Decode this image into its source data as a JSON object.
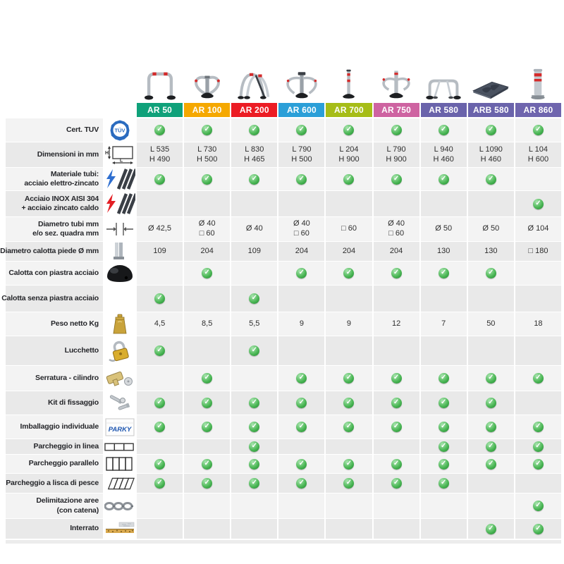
{
  "colors": {
    "check_green": "#3aa944",
    "row_light": "#f3f3f3",
    "row_dark": "#e9e9e9",
    "label_text": "#25262a"
  },
  "products": [
    {
      "id": "ar-50",
      "label": "AR 50",
      "color": "#0FA17A",
      "image": "arch-hoop-barrier"
    },
    {
      "id": "ar-100",
      "label": "AR 100",
      "color": "#F5A800",
      "image": "folding-loop-barrier"
    },
    {
      "id": "ar-200",
      "label": "AR 200",
      "color": "#EC1C24",
      "image": "double-arch-barrier"
    },
    {
      "id": "ar-600",
      "label": "AR 600",
      "color": "#2B9FD8",
      "image": "wing-barrier"
    },
    {
      "id": "ar-700",
      "label": "AR 700",
      "color": "#A6BD17",
      "image": "slim-bollard"
    },
    {
      "id": "ar-750",
      "label": "AR 750",
      "color": "#CE63A1",
      "image": "post-with-arms"
    },
    {
      "id": "ar-580",
      "label": "AR 580",
      "color": "#6A63AB",
      "image": "low-arch-barrier"
    },
    {
      "id": "arb-580",
      "label": "ARB 580",
      "color": "#6A63AB",
      "image": "ramp-plate"
    },
    {
      "id": "ar-860",
      "label": "AR 860",
      "color": "#6F65AE",
      "image": "heavy-bollard"
    }
  ],
  "rows": [
    {
      "id": "cert-tuv",
      "label_lines": [
        "Cert. TUV"
      ],
      "icon": "tuv-badge-icon",
      "cells": [
        {
          "check": true
        },
        {
          "check": true
        },
        {
          "check": true
        },
        {
          "check": true
        },
        {
          "check": true
        },
        {
          "check": true
        },
        {
          "check": true
        },
        {
          "check": true
        },
        {
          "check": true
        }
      ]
    },
    {
      "id": "dimensioni",
      "label_lines": [
        "Dimensioni in mm"
      ],
      "icon": "dimensions-icon",
      "cells": [
        {
          "lines": [
            "L 535",
            "H 490"
          ]
        },
        {
          "lines": [
            "L 730",
            "H 500"
          ]
        },
        {
          "lines": [
            "L 830",
            "H 465"
          ]
        },
        {
          "lines": [
            "L 790",
            "H 500"
          ]
        },
        {
          "lines": [
            "L 204",
            "H 900"
          ]
        },
        {
          "lines": [
            "L 790",
            "H 900"
          ]
        },
        {
          "lines": [
            "L 940",
            "H 460"
          ]
        },
        {
          "lines": [
            "L 1090",
            "H 460"
          ]
        },
        {
          "lines": [
            "L 104",
            "H 600"
          ]
        }
      ]
    },
    {
      "id": "materiale-elettrozincato",
      "label_lines": [
        "Materiale tubi:",
        "acciaio elettro-zincato"
      ],
      "icon": "electro-zinc-steel-icon",
      "cells": [
        {
          "check": true
        },
        {
          "check": true
        },
        {
          "check": true
        },
        {
          "check": true
        },
        {
          "check": true
        },
        {
          "check": true
        },
        {
          "check": true
        },
        {
          "check": true
        },
        null
      ]
    },
    {
      "id": "acciaio-inox",
      "label_lines": [
        "Acciaio INOX AISI 304",
        "+ acciaio zincato caldo"
      ],
      "icon": "inox-steel-icon",
      "cells": [
        null,
        null,
        null,
        null,
        null,
        null,
        null,
        null,
        {
          "check": true
        }
      ]
    },
    {
      "id": "diametro-tubi",
      "label_lines": [
        "Diametro tubi mm",
        "e/o sez. quadra mm"
      ],
      "icon": "tube-diameter-icon",
      "cells": [
        {
          "lines": [
            "Ø 42,5"
          ]
        },
        {
          "lines": [
            "Ø 40",
            "□ 60"
          ]
        },
        {
          "lines": [
            "Ø 40"
          ]
        },
        {
          "lines": [
            "Ø 40",
            "□ 60"
          ]
        },
        {
          "lines": [
            "□ 60"
          ]
        },
        {
          "lines": [
            "Ø 40",
            "□ 60"
          ]
        },
        {
          "lines": [
            "Ø 50"
          ]
        },
        {
          "lines": [
            "Ø 50"
          ]
        },
        {
          "lines": [
            "Ø 104"
          ]
        }
      ]
    },
    {
      "id": "diametro-calotta",
      "label_lines": [
        "Diametro calotta piede Ø mm"
      ],
      "icon": "dome-base-icon",
      "cells": [
        {
          "lines": [
            "109"
          ]
        },
        {
          "lines": [
            "204"
          ]
        },
        {
          "lines": [
            "109"
          ]
        },
        {
          "lines": [
            "204"
          ]
        },
        {
          "lines": [
            "204"
          ]
        },
        {
          "lines": [
            "204"
          ]
        },
        {
          "lines": [
            "130"
          ]
        },
        {
          "lines": [
            "130"
          ]
        },
        {
          "lines": [
            "□ 180"
          ]
        }
      ]
    },
    {
      "id": "calotta-con-piastra",
      "label_lines": [
        "Calotta con piastra acciaio"
      ],
      "icon": null,
      "cells": [
        null,
        {
          "check": true
        },
        null,
        {
          "check": true
        },
        {
          "check": true
        },
        {
          "check": true
        },
        {
          "check": true
        },
        {
          "check": true
        },
        null
      ]
    },
    {
      "id": "calotta-senza-piastra",
      "label_lines": [
        "Calotta senza piastra acciaio"
      ],
      "icon": null,
      "cells": [
        {
          "check": true
        },
        null,
        {
          "check": true
        },
        null,
        null,
        null,
        null,
        null,
        null
      ]
    },
    {
      "id": "peso-netto",
      "label_lines": [
        "Peso netto Kg"
      ],
      "icon": "weight-icon",
      "cells": [
        {
          "lines": [
            "4,5"
          ]
        },
        {
          "lines": [
            "8,5"
          ]
        },
        {
          "lines": [
            "5,5"
          ]
        },
        {
          "lines": [
            "9"
          ]
        },
        {
          "lines": [
            "9"
          ]
        },
        {
          "lines": [
            "12"
          ]
        },
        {
          "lines": [
            "7"
          ]
        },
        {
          "lines": [
            "50"
          ]
        },
        {
          "lines": [
            "18"
          ]
        }
      ]
    },
    {
      "id": "lucchetto",
      "label_lines": [
        "Lucchetto"
      ],
      "icon": "padlock-icon",
      "cells": [
        {
          "check": true
        },
        null,
        {
          "check": true
        },
        null,
        null,
        null,
        null,
        null,
        null
      ]
    },
    {
      "id": "serratura-cilindro",
      "label_lines": [
        "Serratura - cilindro"
      ],
      "icon": "lock-cylinder-icon",
      "cells": [
        null,
        {
          "check": true
        },
        null,
        {
          "check": true
        },
        {
          "check": true
        },
        {
          "check": true
        },
        {
          "check": true
        },
        {
          "check": true
        },
        {
          "check": true
        }
      ]
    },
    {
      "id": "kit-di-fissaggio",
      "label_lines": [
        "Kit di fissaggio"
      ],
      "icon": "fixing-kit-icon",
      "cells": [
        {
          "check": true
        },
        {
          "check": true
        },
        {
          "check": true
        },
        {
          "check": true
        },
        {
          "check": true
        },
        {
          "check": true
        },
        {
          "check": true
        },
        {
          "check": true
        },
        null
      ]
    },
    {
      "id": "imballaggio-individuale",
      "label_lines": [
        "Imballaggio individuale"
      ],
      "icon": "parky-box-icon",
      "cells": [
        {
          "check": true
        },
        {
          "check": true
        },
        {
          "check": true
        },
        {
          "check": true
        },
        {
          "check": true
        },
        {
          "check": true
        },
        {
          "check": true
        },
        {
          "check": true
        },
        {
          "check": true
        }
      ]
    },
    {
      "id": "parcheggio-in-linea",
      "label_lines": [
        "Parcheggio in linea"
      ],
      "icon": "inline-parking-icon",
      "cells": [
        null,
        null,
        {
          "check": true
        },
        null,
        null,
        null,
        {
          "check": true
        },
        {
          "check": true
        },
        {
          "check": true
        }
      ]
    },
    {
      "id": "parcheggio-parallelo",
      "label_lines": [
        "Parcheggio parallelo"
      ],
      "icon": "parallel-parking-icon",
      "cells": [
        {
          "check": true
        },
        {
          "check": true
        },
        {
          "check": true
        },
        {
          "check": true
        },
        {
          "check": true
        },
        {
          "check": true
        },
        {
          "check": true
        },
        {
          "check": true
        },
        {
          "check": true
        }
      ]
    },
    {
      "id": "parcheggio-lisca-di-pesce",
      "label_lines": [
        "Parcheggio a lisca di pesce"
      ],
      "icon": "herringbone-parking-icon",
      "cells": [
        {
          "check": true
        },
        {
          "check": true
        },
        {
          "check": true
        },
        {
          "check": true
        },
        {
          "check": true
        },
        {
          "check": true
        },
        {
          "check": true
        },
        null,
        null
      ]
    },
    {
      "id": "delimitazione-aree",
      "label_lines": [
        "Delimitazione aree",
        "(con catena)"
      ],
      "icon": "chain-icon",
      "cells": [
        null,
        null,
        null,
        null,
        null,
        null,
        null,
        null,
        {
          "check": true
        }
      ]
    },
    {
      "id": "interrato",
      "label_lines": [
        "Interrato"
      ],
      "icon": "underground-icon",
      "cells": [
        null,
        null,
        null,
        null,
        null,
        null,
        null,
        {
          "check": true
        },
        {
          "check": true
        }
      ]
    }
  ]
}
